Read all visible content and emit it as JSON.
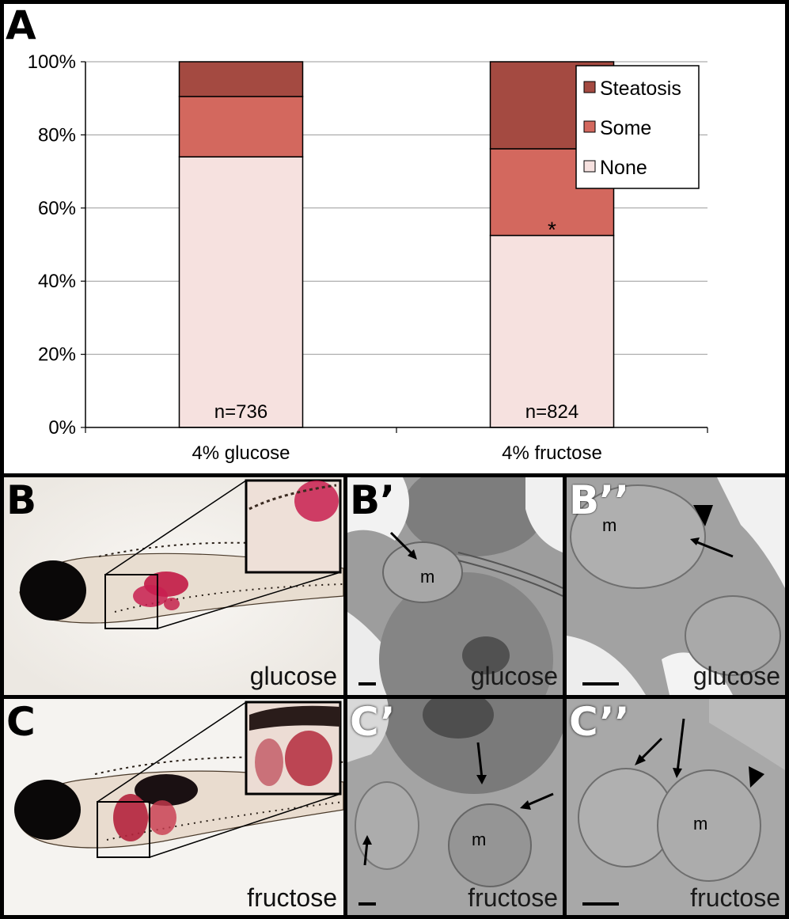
{
  "panel_a": {
    "label": "A",
    "chart_data": {
      "type": "bar",
      "stacked": true,
      "categories": [
        "4% glucose",
        "4% fructose"
      ],
      "series": [
        {
          "name": "None",
          "values": [
            74,
            52.5
          ],
          "color": "#f6e1df"
        },
        {
          "name": "Some",
          "values": [
            16.5,
            23.7
          ],
          "color": "#d3685e"
        },
        {
          "name": "Steatosis",
          "values": [
            9.5,
            23.8
          ],
          "color": "#a44a41"
        }
      ],
      "legend_order": [
        "Steatosis",
        "Some",
        "None"
      ],
      "legend_position": "top-right",
      "ylim": [
        0,
        100
      ],
      "yticks": [
        "0%",
        "20%",
        "40%",
        "60%",
        "80%",
        "100%"
      ],
      "ytick_values": [
        0,
        20,
        40,
        60,
        80,
        100
      ],
      "grid": true,
      "n_labels": [
        "n=736",
        "n=824"
      ],
      "significance": [
        "",
        "*"
      ]
    }
  },
  "panel_b": {
    "label": "B",
    "condition": "glucose"
  },
  "panel_b1": {
    "label": "B’",
    "condition": "glucose",
    "mito": "m"
  },
  "panel_b2": {
    "label": "B’’",
    "condition": "glucose",
    "mito": "m"
  },
  "panel_c": {
    "label": "C",
    "condition": "fructose"
  },
  "panel_c1": {
    "label": "C’",
    "condition": "fructose",
    "mito": "m"
  },
  "panel_c2": {
    "label": "C’’",
    "condition": "fructose",
    "mito": "m"
  }
}
